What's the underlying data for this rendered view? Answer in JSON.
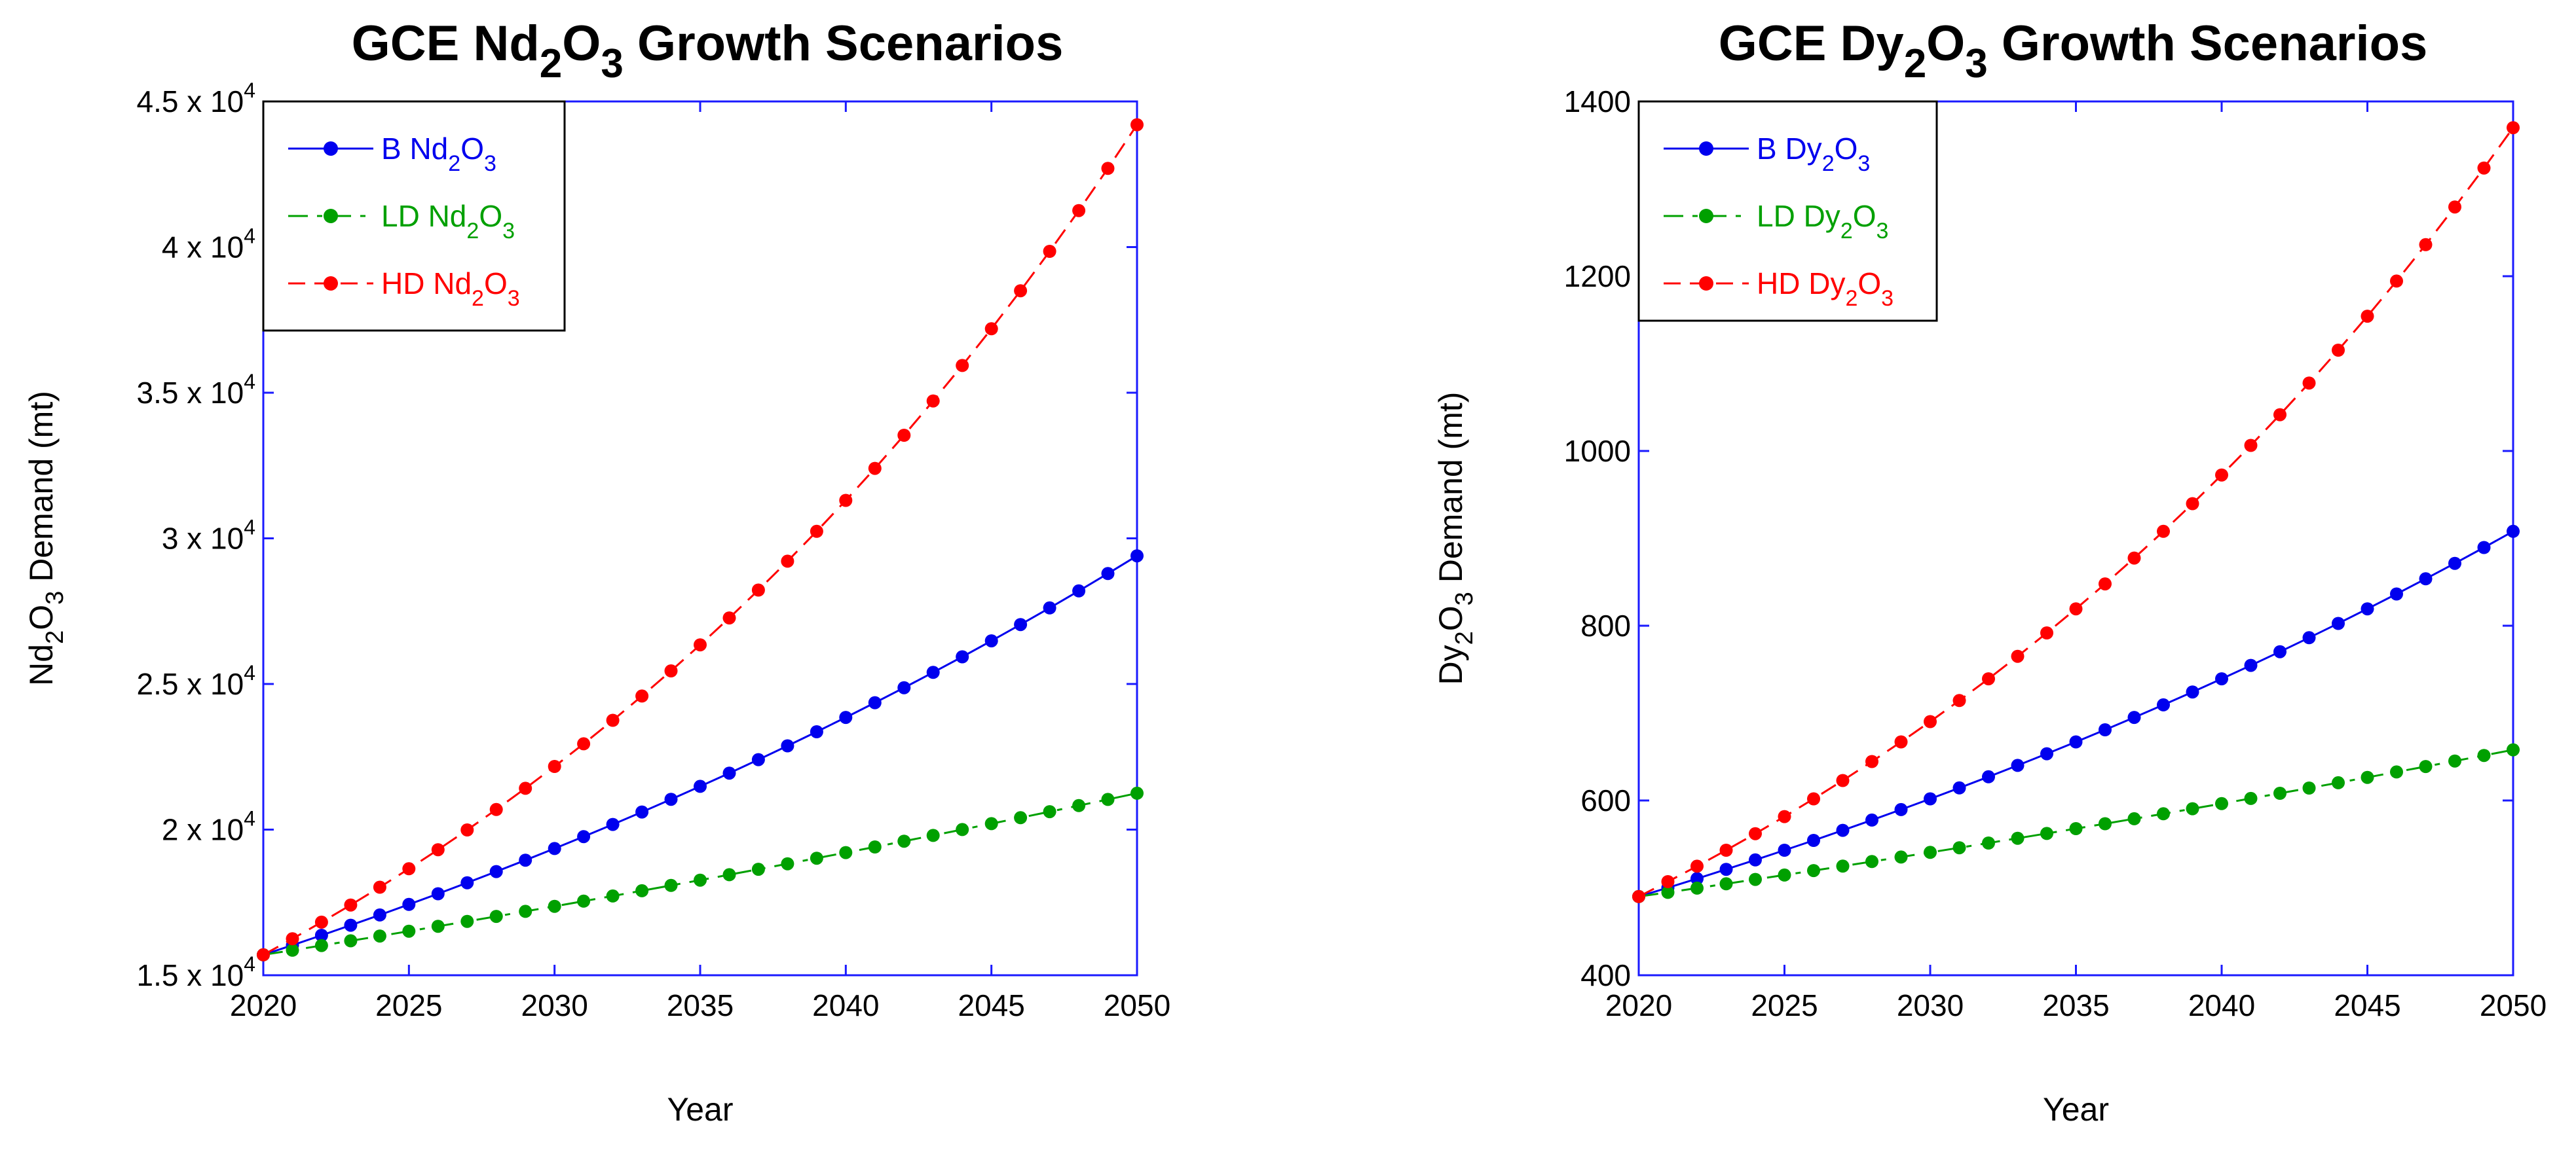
{
  "chart_data": [
    {
      "type": "line",
      "title": {
        "prefix": "GCE Nd",
        "sub1": "2",
        "mid": "O",
        "sub2": "3",
        "suffix": " Growth Scenarios"
      },
      "xlabel": "Year",
      "ylabel": {
        "prefix": "Nd",
        "sub1": "2",
        "mid": "O",
        "sub2": "3",
        "suffix": " Demand (mt)"
      },
      "xlim": [
        2020,
        2050
      ],
      "ylim": [
        15000,
        45000
      ],
      "x_ticks": [
        2020,
        2025,
        2030,
        2035,
        2040,
        2045,
        2050
      ],
      "y_ticks": [
        {
          "value": 15000,
          "mant": "1.5 x 10",
          "exp": "4"
        },
        {
          "value": 20000,
          "mant": "2 x 10",
          "exp": "4"
        },
        {
          "value": 25000,
          "mant": "2.5 x 10",
          "exp": "4"
        },
        {
          "value": 30000,
          "mant": "3 x 10",
          "exp": "4"
        },
        {
          "value": 35000,
          "mant": "3.5 x 10",
          "exp": "4"
        },
        {
          "value": 40000,
          "mant": "4 x 10",
          "exp": "4"
        },
        {
          "value": 45000,
          "mant": "4.5 x 10",
          "exp": "4"
        }
      ],
      "legend_position": "top-left",
      "series": [
        {
          "name": "B Nd2O3",
          "label": {
            "prefix": "B Nd",
            "sub1": "2",
            "mid": "O",
            "sub2": "3"
          },
          "color": "#0000ee",
          "dash": "solid",
          "start": 15700,
          "end": 29400
        },
        {
          "name": "LD Nd2O3",
          "label": {
            "prefix": "LD Nd",
            "sub1": "2",
            "mid": "O",
            "sub2": "3"
          },
          "color": "#00a000",
          "dash": "dashdot",
          "start": 15700,
          "end": 21250
        },
        {
          "name": "HD Nd2O3",
          "label": {
            "prefix": "HD Nd",
            "sub1": "2",
            "mid": "O",
            "sub2": "3"
          },
          "color": "#ff0000",
          "dash": "dashed",
          "start": 15700,
          "end": 44200
        }
      ]
    },
    {
      "type": "line",
      "title": {
        "prefix": "GCE Dy",
        "sub1": "2",
        "mid": "O",
        "sub2": "3",
        "suffix": " Growth Scenarios"
      },
      "xlabel": "Year",
      "ylabel": {
        "prefix": "Dy",
        "sub1": "2",
        "mid": "O",
        "sub2": "3",
        "suffix": " Demand (mt)"
      },
      "xlim": [
        2020,
        2050
      ],
      "ylim": [
        400,
        1400
      ],
      "x_ticks": [
        2020,
        2025,
        2030,
        2035,
        2040,
        2045,
        2050
      ],
      "y_ticks": [
        {
          "value": 400,
          "mant": "400",
          "exp": ""
        },
        {
          "value": 600,
          "mant": "600",
          "exp": ""
        },
        {
          "value": 800,
          "mant": "800",
          "exp": ""
        },
        {
          "value": 1000,
          "mant": "1000",
          "exp": ""
        },
        {
          "value": 1200,
          "mant": "1200",
          "exp": ""
        },
        {
          "value": 1400,
          "mant": "1400",
          "exp": ""
        }
      ],
      "legend_position": "top-left",
      "series": [
        {
          "name": "B Dy2O3",
          "label": {
            "prefix": "B Dy",
            "sub1": "2",
            "mid": "O",
            "sub2": "3"
          },
          "color": "#0000ee",
          "dash": "solid",
          "start": 490,
          "end": 908
        },
        {
          "name": "LD Dy2O3",
          "label": {
            "prefix": "LD Dy",
            "sub1": "2",
            "mid": "O",
            "sub2": "3"
          },
          "color": "#00a000",
          "dash": "dashdot",
          "start": 490,
          "end": 658
        },
        {
          "name": "HD Dy2O3",
          "label": {
            "prefix": "HD Dy",
            "sub1": "2",
            "mid": "O",
            "sub2": "3"
          },
          "color": "#ff0000",
          "dash": "dashed",
          "start": 490,
          "end": 1370
        }
      ]
    }
  ]
}
